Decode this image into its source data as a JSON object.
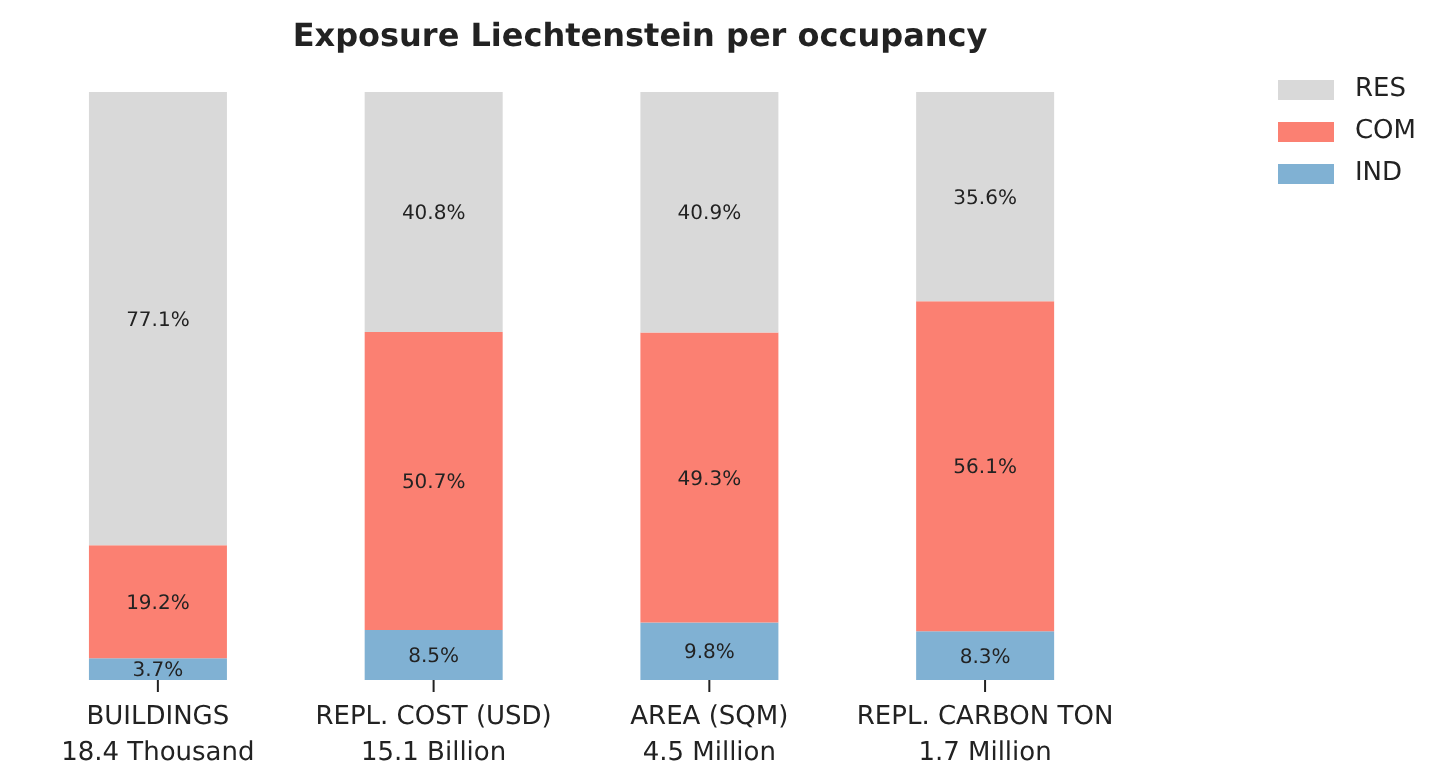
{
  "chart_data": {
    "type": "bar",
    "title": "Exposure Liechtenstein per occupancy",
    "categories": [
      "BUILDINGS\n18.4 Thousand",
      "REPL. COST (USD)\n15.1 Billion",
      "AREA (SQM)\n4.5 Million",
      "REPL. CARBON TON\n1.7 Million"
    ],
    "stacked": true,
    "legend": "top right",
    "series": [
      {
        "name": "IND",
        "color": "#80b1d3",
        "values": [
          3.7,
          8.5,
          9.8,
          8.3
        ],
        "value_labels": [
          "3.7%",
          "8.5%",
          "9.8%",
          "8.3%"
        ]
      },
      {
        "name": "COM",
        "color": "#fb8072",
        "values": [
          19.2,
          50.7,
          49.3,
          56.1
        ],
        "value_labels": [
          "19.2%",
          "50.7%",
          "49.3%",
          "56.1%"
        ]
      },
      {
        "name": "RES",
        "color": "#d9d9d9",
        "values": [
          77.1,
          40.8,
          40.9,
          35.6
        ],
        "value_labels": [
          "77.1%",
          "40.8%",
          "40.9%",
          "35.6%"
        ]
      }
    ]
  }
}
